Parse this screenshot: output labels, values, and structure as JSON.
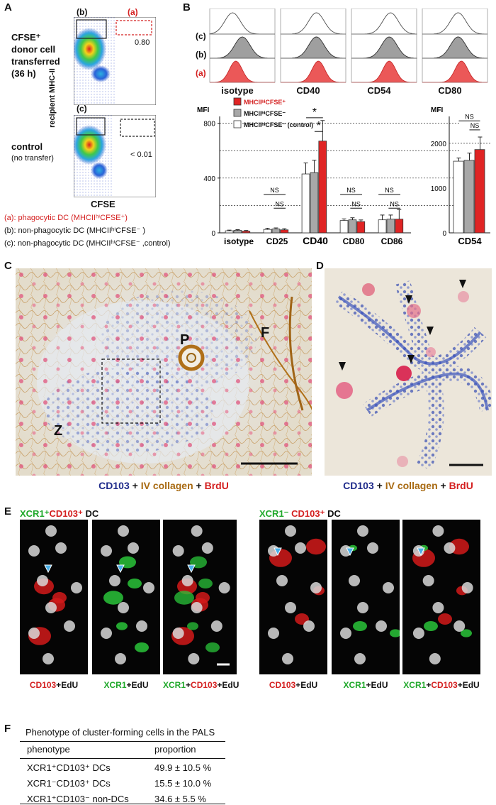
{
  "panelA": {
    "letter": "A",
    "gate_b": "(b)",
    "gate_a": "(a)",
    "gate_c": "(c)",
    "pct_top": "0.80",
    "pct_bottom": "< 0.01",
    "label_top_1": "CFSE⁺",
    "label_top_2": "donor cell",
    "label_top_3": "transferred",
    "label_top_4": "(36 h)",
    "label_bottom_1": "control",
    "label_bottom_2": "(no transfer)",
    "y_axis": "recipient MHC-II",
    "x_axis": "CFSE",
    "legend_a": "(a): phagocytic DC (MHCIIʰⁱCFSE⁺)",
    "legend_b": "(b): non-phagocytic DC (MHCIIʰⁱCFSE⁻ )",
    "legend_c": "(c): non-phagocytic DC (MHCIIʰⁱCFSE⁻ ,control)"
  },
  "panelB": {
    "letter": "B",
    "hist_labels": [
      "isotype",
      "CD40",
      "CD54",
      "CD80"
    ],
    "row_labels": [
      "(c)",
      "(b)",
      "(a)"
    ],
    "legend": [
      "MHCIIʰⁱCFSE⁺",
      "MHCIIʰⁱCFSE⁻",
      "MHCIIʰⁱCFSE⁻ (control)"
    ],
    "mfi": "MFI",
    "ns": "NS",
    "star": "*",
    "colors": {
      "red": "#e02424",
      "gray": "#a8a8a8",
      "white": "#ffffff"
    }
  },
  "chart_data": [
    {
      "type": "bar",
      "ylabel": "MFI",
      "ylim": [
        0,
        850
      ],
      "categories": [
        "isotype",
        "CD25",
        "CD40",
        "CD80",
        "CD86"
      ],
      "yticks": [
        0,
        400,
        800
      ],
      "series": [
        {
          "name": "MHCIIʰⁱCFSE⁻ (control)",
          "values": [
            15,
            25,
            430,
            90,
            95
          ],
          "errors": [
            5,
            8,
            80,
            12,
            35
          ]
        },
        {
          "name": "MHCIIʰⁱCFSE⁻",
          "values": [
            18,
            28,
            440,
            95,
            100
          ],
          "errors": [
            5,
            8,
            90,
            15,
            30
          ]
        },
        {
          "name": "MHCIIʰⁱCFSE⁺",
          "values": [
            12,
            22,
            670,
            82,
            100
          ],
          "errors": [
            5,
            8,
            150,
            12,
            70
          ]
        }
      ]
    },
    {
      "type": "bar",
      "ylabel": "MFI",
      "ylim": [
        0,
        2600
      ],
      "categories": [
        "CD54"
      ],
      "yticks": [
        0,
        1000,
        2000
      ],
      "series": [
        {
          "name": "MHCIIʰⁱCFSE⁻ (control)",
          "values": [
            1600
          ],
          "errors": [
            70
          ]
        },
        {
          "name": "MHCIIʰⁱCFSE⁻",
          "values": [
            1620
          ],
          "errors": [
            160
          ]
        },
        {
          "name": "MHCIIʰⁱCFSE⁺",
          "values": [
            1860
          ],
          "errors": [
            280
          ]
        }
      ]
    }
  ],
  "panelC": {
    "letter": "C",
    "P": "P",
    "F": "F",
    "Z": "Z",
    "cap_cd103": "CD103",
    "cap_plus1": " + ",
    "cap_col": "IV collagen",
    "cap_plus2": " + ",
    "cap_brdu": "BrdU"
  },
  "panelD": {
    "letter": "D",
    "cap_cd103": "CD103",
    "cap_plus1": " + ",
    "cap_col": "IV collagen",
    "cap_plus2": " + ",
    "cap_brdu": "BrdU"
  },
  "panelE": {
    "letter": "E",
    "title_left_a": "XCR1⁺",
    "title_left_b": "CD103⁺",
    "title_left_c": " DC",
    "title_right_a": "XCR1⁻",
    "title_right_b": " CD103⁺",
    "title_right_c": " DC",
    "cap_cd103": "CD103",
    "cap_xcr1": "XCR1",
    "cap_plus": "+",
    "cap_edu": "EdU"
  },
  "panelF": {
    "letter": "F",
    "title": "Phenotype of cluster-forming cells in the PALS",
    "col1": "phenotype",
    "col2": "proportion",
    "rows": [
      {
        "phenotype": "XCR1⁺CD103⁺ DCs",
        "proportion": "49.9  ± 10.5 %"
      },
      {
        "phenotype": "XCR1⁻CD103⁺ DCs",
        "proportion": "15.5  ± 10.0 %"
      },
      {
        "phenotype": "XCR1⁺CD103⁻ non-DCs",
        "proportion": "34.6  ± 5.5 %"
      }
    ]
  }
}
